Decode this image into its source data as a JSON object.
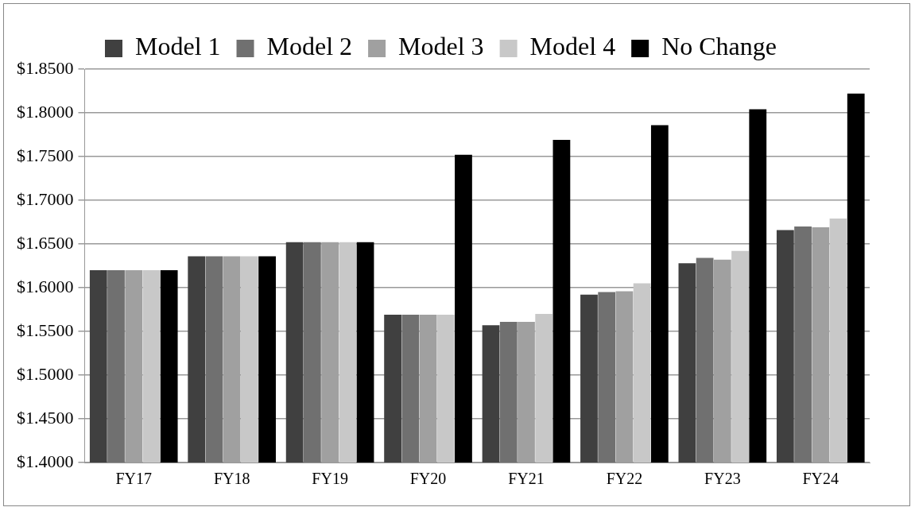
{
  "chart_data": {
    "type": "bar",
    "categories": [
      "FY17",
      "FY18",
      "FY19",
      "FY20",
      "FY21",
      "FY22",
      "FY23",
      "FY24"
    ],
    "series": [
      {
        "name": "Model 1",
        "color": "#404040",
        "values": [
          1.62,
          1.636,
          1.652,
          1.569,
          1.557,
          1.592,
          1.628,
          1.666
        ]
      },
      {
        "name": "Model 2",
        "color": "#707070",
        "values": [
          1.62,
          1.636,
          1.652,
          1.569,
          1.561,
          1.595,
          1.634,
          1.67
        ]
      },
      {
        "name": "Model 3",
        "color": "#a0a0a0",
        "values": [
          1.62,
          1.636,
          1.652,
          1.569,
          1.561,
          1.596,
          1.632,
          1.669
        ]
      },
      {
        "name": "Model 4",
        "color": "#c8c8c8",
        "values": [
          1.62,
          1.636,
          1.652,
          1.569,
          1.57,
          1.605,
          1.642,
          1.679
        ]
      },
      {
        "name": "No Change",
        "color": "#000000",
        "values": [
          1.62,
          1.636,
          1.652,
          1.752,
          1.769,
          1.786,
          1.804,
          1.822
        ]
      }
    ],
    "ylim": [
      1.4,
      1.85
    ],
    "yticks": [
      {
        "value": 1.4,
        "label": "$1.4000"
      },
      {
        "value": 1.45,
        "label": "$1.4500"
      },
      {
        "value": 1.5,
        "label": "$1.5000"
      },
      {
        "value": 1.55,
        "label": "$1.5500"
      },
      {
        "value": 1.6,
        "label": "$1.6000"
      },
      {
        "value": 1.65,
        "label": "$1.6500"
      },
      {
        "value": 1.7,
        "label": "$1.7000"
      },
      {
        "value": 1.75,
        "label": "$1.7500"
      },
      {
        "value": 1.8,
        "label": "$1.8000"
      },
      {
        "value": 1.85,
        "label": "$1.8500"
      }
    ],
    "grid": "y",
    "legend": "top"
  }
}
